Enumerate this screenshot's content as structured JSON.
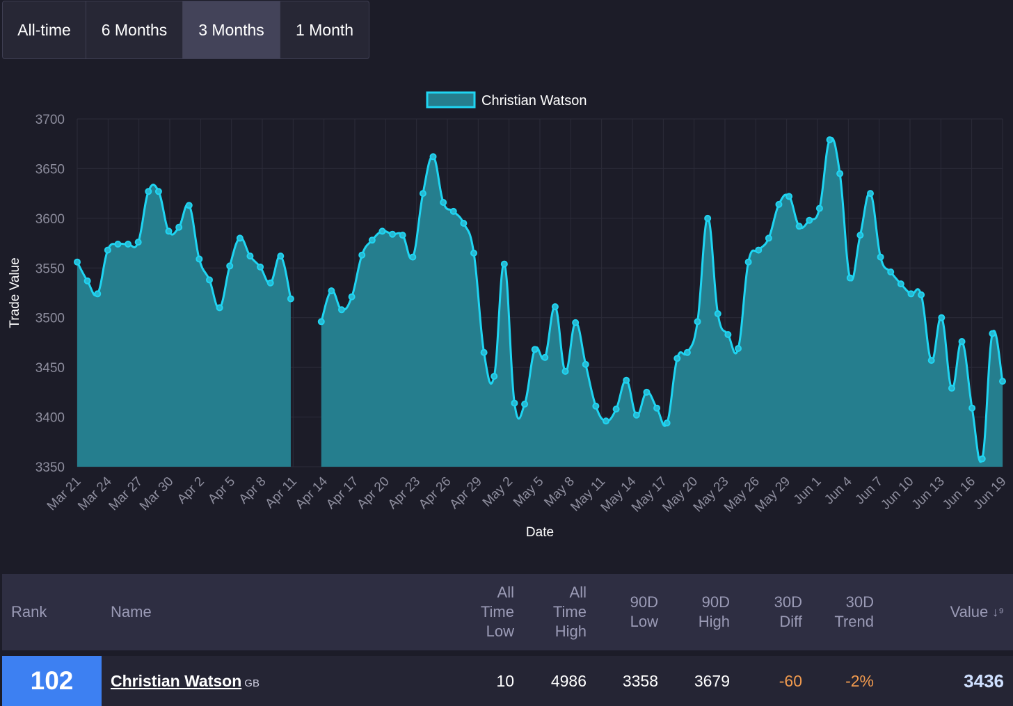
{
  "range_tabs": [
    {
      "label": "All-time",
      "active": false
    },
    {
      "label": "6 Months",
      "active": false
    },
    {
      "label": "3 Months",
      "active": true
    },
    {
      "label": "1 Month",
      "active": false
    }
  ],
  "chart_data": {
    "type": "area",
    "title": "",
    "xlabel": "Date",
    "ylabel": "Trade Value",
    "ylim": [
      3350,
      3700
    ],
    "y_ticks": [
      3350,
      3400,
      3450,
      3500,
      3550,
      3600,
      3650,
      3700
    ],
    "x_tick_labels": [
      "Mar 21",
      "Mar 24",
      "Mar 27",
      "Mar 30",
      "Apr 2",
      "Apr 5",
      "Apr 8",
      "Apr 11",
      "Apr 14",
      "Apr 17",
      "Apr 20",
      "Apr 23",
      "Apr 26",
      "Apr 29",
      "May 2",
      "May 5",
      "May 8",
      "May 11",
      "May 14",
      "May 17",
      "May 20",
      "May 23",
      "May 26",
      "May 29",
      "Jun 1",
      "Jun 4",
      "Jun 7",
      "Jun 10",
      "Jun 13",
      "Jun 16",
      "Jun 19"
    ],
    "x_start": "Mar 21",
    "x_end": "Jun 19",
    "legend_position": "top",
    "grid": true,
    "colors": {
      "line": "#1fd5f2",
      "fill": "#257e8e"
    },
    "series": [
      {
        "name": "Christian Watson",
        "values": [
          3556,
          3537,
          3524,
          3568,
          3574,
          3574,
          3576,
          3627,
          3627,
          3587,
          3591,
          3613,
          3559,
          3538,
          3510,
          3552,
          3580,
          3562,
          3551,
          3535,
          3562,
          3519,
          null,
          null,
          3496,
          3527,
          3508,
          3521,
          3563,
          3578,
          3587,
          3584,
          3583,
          3561,
          3625,
          3662,
          3616,
          3607,
          3595,
          3565,
          3465,
          3441,
          3554,
          3414,
          3413,
          3468,
          3460,
          3511,
          3446,
          3495,
          3453,
          3411,
          3396,
          3408,
          3437,
          3402,
          3425,
          3409,
          3394,
          3459,
          3465,
          3496,
          3600,
          3504,
          3483,
          3469,
          3556,
          3568,
          3580,
          3614,
          3622,
          3592,
          3598,
          3610,
          3679,
          3645,
          3540,
          3583,
          3625,
          3561,
          3546,
          3534,
          3524,
          3523,
          3457,
          3500,
          3429,
          3476,
          3409,
          3358,
          3484,
          3436
        ]
      }
    ]
  },
  "table": {
    "headers": {
      "rank": "Rank",
      "name": "Name",
      "atl": [
        "All",
        "Time",
        "Low"
      ],
      "ath": [
        "All",
        "Time",
        "High"
      ],
      "low90": [
        "90D",
        "Low"
      ],
      "high90": [
        "90D",
        "High"
      ],
      "diff30": [
        "30D",
        "Diff"
      ],
      "trend30": [
        "30D",
        "Trend"
      ],
      "value": "Value"
    },
    "sort_icon": "sort-descending-icon",
    "rows": [
      {
        "rank": "102",
        "name": "Christian Watson",
        "country": "GB",
        "atl": "10",
        "ath": "4986",
        "low90": "3358",
        "high90": "3679",
        "diff30": "-60",
        "trend30": "-2%",
        "value": "3436"
      }
    ]
  }
}
